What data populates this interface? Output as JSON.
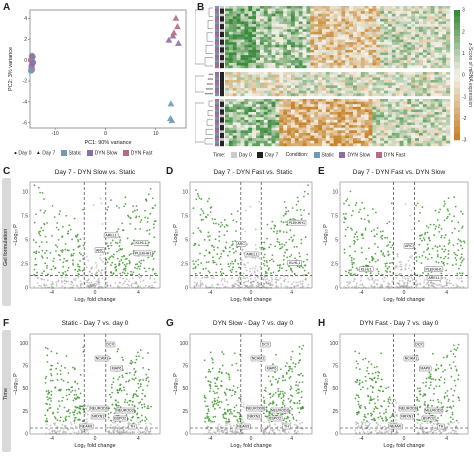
{
  "panels": {
    "A": {
      "label": "A"
    },
    "B": {
      "label": "B"
    },
    "C": {
      "label": "C",
      "title": "Day 7 - DYN Slow vs. Static"
    },
    "D": {
      "label": "D",
      "title": "Day 7 - DYN Fast vs. Static"
    },
    "E": {
      "label": "E",
      "title": "Day 7 - DYN Fast vs. DYN Slow"
    },
    "F": {
      "label": "F",
      "title": "Static - Day 7 vs. day 0"
    },
    "G": {
      "label": "G",
      "title": "DYN Slow - Day 7 vs. day 0"
    },
    "H": {
      "label": "H",
      "title": "DYN Fast - Day 7 vs. day 0"
    }
  },
  "row_tags": {
    "top": "Gel formulation",
    "bottom": "Time"
  },
  "pca_legend": {
    "time": [
      "Day 0",
      "Day 7"
    ],
    "conditions": [
      "Static",
      "DYN Slow",
      "DYN Fast"
    ]
  },
  "heatmap_legend": {
    "time_title": "Time:",
    "time": [
      "Day 0",
      "Day 7"
    ],
    "condition_title": "Condition:",
    "conditions": [
      "Static",
      "DYN Slow",
      "DYN Fast"
    ],
    "colorbar_label": "z-Score of mRNA expression",
    "colorbar_ticks": [
      "3",
      "2",
      "1",
      "0",
      "-1",
      "-2",
      "-3"
    ]
  },
  "volcano_axes": {
    "x_label": "Log₂ fold change",
    "y_label": "−Log₁₀ P"
  },
  "genes": {
    "C": [
      "ARC",
      "AREL1",
      "KLHL1",
      "PLEKHH1"
    ],
    "D": [
      "ARC",
      "PLEKHH1",
      "AREL1",
      "KLHL1"
    ],
    "E": [
      "ARC",
      "KLHL1",
      "PLEKHH1",
      "AREL1"
    ],
    "FGH": [
      "DCX",
      "NCAM1",
      "MAP6",
      "NEUROD6",
      "NEUROD2",
      "NRXN1",
      "BSPO2",
      "NEAM1",
      "TH"
    ]
  },
  "colors": {
    "day7": "#222222",
    "day0": "#cccccc",
    "static": "#6f9ab3",
    "dyn_slow": "#8a6fa6",
    "dyn_fast": "#b76a86",
    "sig": "#3f9a2f",
    "ns": "#9a9a9a",
    "heat_high": "#3b8a3b",
    "heat_mid": "#f4f1ea",
    "heat_low": "#c6832a"
  },
  "chart_data": [
    {
      "type": "scatter",
      "panel": "A",
      "xlabel": "PC1: 90% variance",
      "ylabel": "PC2: 3% variance",
      "xlim": [
        -15,
        16
      ],
      "ylim": [
        -6.5,
        4.8
      ],
      "xticks": [
        -10,
        0,
        10
      ],
      "yticks": [
        -6,
        -4,
        -2,
        0,
        2,
        4
      ],
      "series": [
        {
          "name": "Day 0",
          "points": [
            [
              -14.6,
              0.4
            ],
            [
              -14.5,
              0.3
            ],
            [
              -14.8,
              0.0
            ],
            [
              -14.4,
              -0.2
            ],
            [
              -14.7,
              -0.6
            ],
            [
              -14.6,
              -0.9
            ],
            [
              -14.8,
              -1.0
            ],
            [
              -14.5,
              -0.3
            ]
          ]
        },
        {
          "name": "Day 7 Static",
          "points": [
            [
              13.0,
              -4.2
            ],
            [
              13.2,
              -5.8
            ],
            [
              12.9,
              -5.6
            ]
          ]
        },
        {
          "name": "Day 7 DYN Slow",
          "points": [
            [
              12.6,
              1.9
            ],
            [
              13.4,
              2.3
            ],
            [
              14.5,
              1.6
            ]
          ]
        },
        {
          "name": "Day 7 DYN Fast",
          "points": [
            [
              14.0,
              4.0
            ],
            [
              14.3,
              3.2
            ],
            [
              13.6,
              2.6
            ]
          ]
        }
      ]
    }
  ]
}
